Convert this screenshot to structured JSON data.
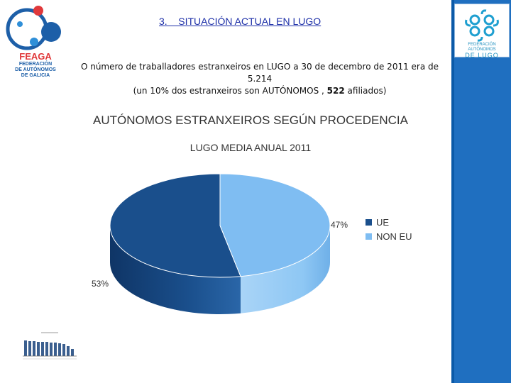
{
  "header": {
    "section_title": "3.    SITUACIÓN ACTUAL EN LUGO",
    "intro_line1": "O número de traballadores estranxeiros en LUGO a 30 de decembro de 2011 era de 5.214",
    "intro_line2_pre": "(un 10% dos estranxeiros son  AUTÓNOMOS , ",
    "intro_line2_bold": "522",
    "intro_line2_post": " afiliados)"
  },
  "logos": {
    "feaga_name": "FEAGA",
    "feaga_sub1": "FEDERACIÓN",
    "feaga_sub2": "DE AUTÓNOMOS",
    "feaga_sub3": "DE GALICIA",
    "lugo_line1": "FEDERACIÓN",
    "lugo_line2": "AUTÓNOMOS",
    "lugo_line3": "DE LUGO"
  },
  "colors": {
    "ue": "#1a4f8c",
    "non_eu": "#7fbdf2",
    "band": "#0b5aa8"
  },
  "chart_data": {
    "type": "pie",
    "title": "AUTÓNOMOS ESTRANXEIROS SEGÚN PROCEDENCIA",
    "subtitle": "LUGO MEDIA ANUAL 2011",
    "categories": [
      "UE",
      "NON EU"
    ],
    "values": [
      53,
      47
    ],
    "labels": [
      "53%",
      "47%"
    ],
    "legend_position": "right",
    "style": "3d"
  }
}
